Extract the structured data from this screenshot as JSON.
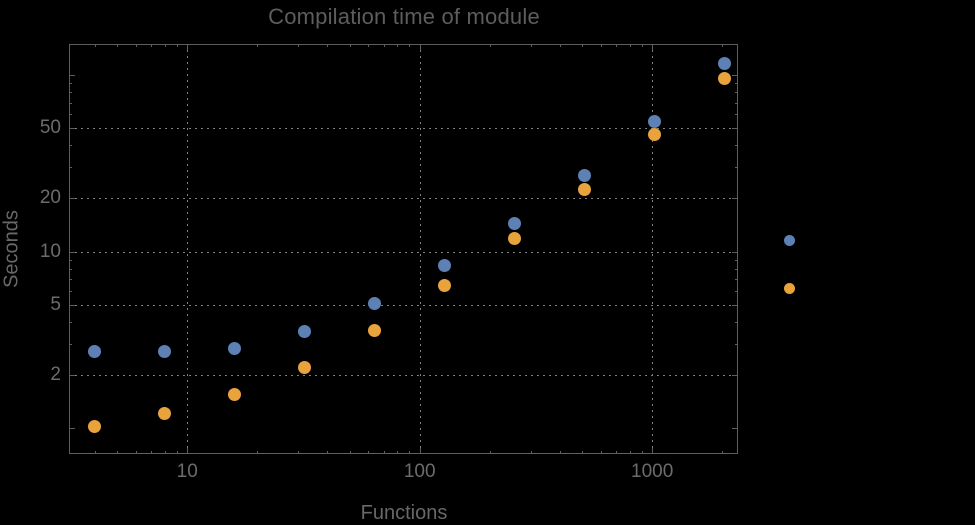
{
  "title": "Compilation time of module",
  "axes": {
    "x_label": "Functions",
    "y_label": "Seconds"
  },
  "colors": {
    "background": "#000000",
    "frame": "#5e5e5e",
    "grid": "#7f7f7f",
    "tick_text": "#6c6c6c",
    "title_text": "#5d5d5d",
    "series_blue": "#5e81b5",
    "series_orange": "#e8a33d"
  },
  "chart_data": {
    "type": "scatter",
    "title": "Compilation time of module",
    "xlabel": "Functions",
    "ylabel": "Seconds",
    "x_scale": "log",
    "y_scale": "log",
    "xlim": [
      3.1,
      2340
    ],
    "ylim": [
      0.71,
      150.5
    ],
    "grid": "on",
    "x": [
      4,
      8,
      16,
      32,
      64,
      128,
      256,
      512,
      1024,
      2048
    ],
    "series": [
      {
        "name": "blue",
        "color": "#5e81b5",
        "values": [
          2.7,
          2.7,
          2.8,
          3.5,
          5.1,
          8.3,
          14.4,
          27,
          55,
          117
        ]
      },
      {
        "name": "orange",
        "color": "#e8a33d",
        "values": [
          1.02,
          1.2,
          1.54,
          2.2,
          3.55,
          6.4,
          11.8,
          22.5,
          46,
          96
        ]
      }
    ],
    "x_ticks": {
      "major": [
        10,
        100,
        1000
      ],
      "major_labels": [
        "10",
        "100",
        "1000"
      ],
      "minor": [
        4,
        5,
        6,
        7,
        8,
        9,
        20,
        30,
        40,
        50,
        60,
        70,
        80,
        90,
        200,
        300,
        400,
        500,
        600,
        700,
        800,
        900,
        2000
      ]
    },
    "y_ticks": {
      "major": [
        2,
        5,
        10,
        20,
        50
      ],
      "major_labels": [
        "2",
        "5",
        "10",
        "20",
        "50"
      ],
      "major_unlabeled": [
        1,
        100
      ],
      "minor": [
        3,
        4,
        6,
        7,
        8,
        9,
        30,
        40,
        60,
        70,
        80,
        90
      ]
    },
    "gridlines": {
      "x": [
        10,
        100,
        1000
      ],
      "y": [
        2,
        5,
        10,
        20,
        50
      ]
    },
    "legend": {
      "position": "right-of-frame",
      "markers": [
        {
          "series": "blue",
          "color": "#5e81b5"
        },
        {
          "series": "orange",
          "color": "#e8a33d"
        }
      ]
    }
  }
}
